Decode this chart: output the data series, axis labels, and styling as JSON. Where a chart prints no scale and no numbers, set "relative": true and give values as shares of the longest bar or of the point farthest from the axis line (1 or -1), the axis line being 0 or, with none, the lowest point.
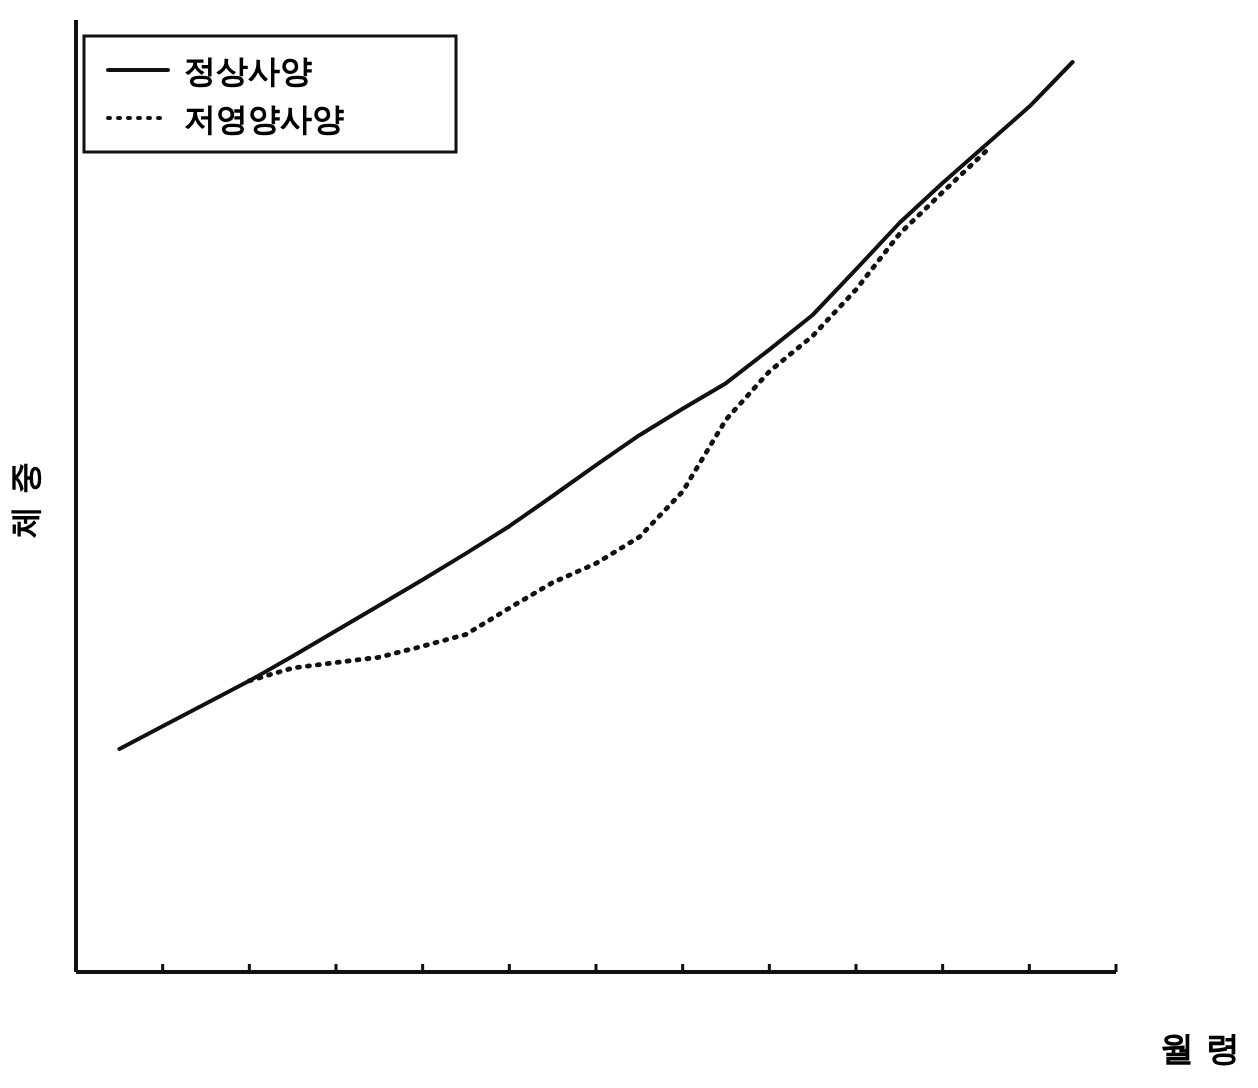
{
  "chart_data": {
    "type": "line",
    "relative": true,
    "xlabel": "월 령",
    "ylabel": "체 중",
    "legend": "top left",
    "categories": [
      null,
      null,
      null,
      null,
      null,
      null,
      null,
      null,
      null,
      null,
      null,
      null,
      null,
      null,
      null,
      null,
      null,
      null,
      null,
      null,
      null,
      null,
      null
    ],
    "series": [
      {
        "name": "정상사양",
        "color": "#111111",
        "line_style": "solid",
        "values": [
          0.245,
          0.27,
          0.295,
          0.32,
          0.347,
          0.375,
          0.403,
          0.431,
          0.46,
          0.49,
          0.523,
          0.557,
          0.59,
          0.619,
          0.647,
          0.684,
          0.722,
          0.772,
          0.823,
          0.867,
          0.909,
          0.951,
          1
        ]
      },
      {
        "name": "저영양사양",
        "color": "#111111",
        "line_style": "dotted",
        "values": [
          null,
          null,
          null,
          0.32,
          0.334,
          0.34,
          0.346,
          0.358,
          0.371,
          0.4,
          0.428,
          0.449,
          0.478,
          0.528,
          0.607,
          0.66,
          0.699,
          0.75,
          0.811,
          0.857,
          0.902,
          null,
          null
        ]
      }
    ]
  }
}
